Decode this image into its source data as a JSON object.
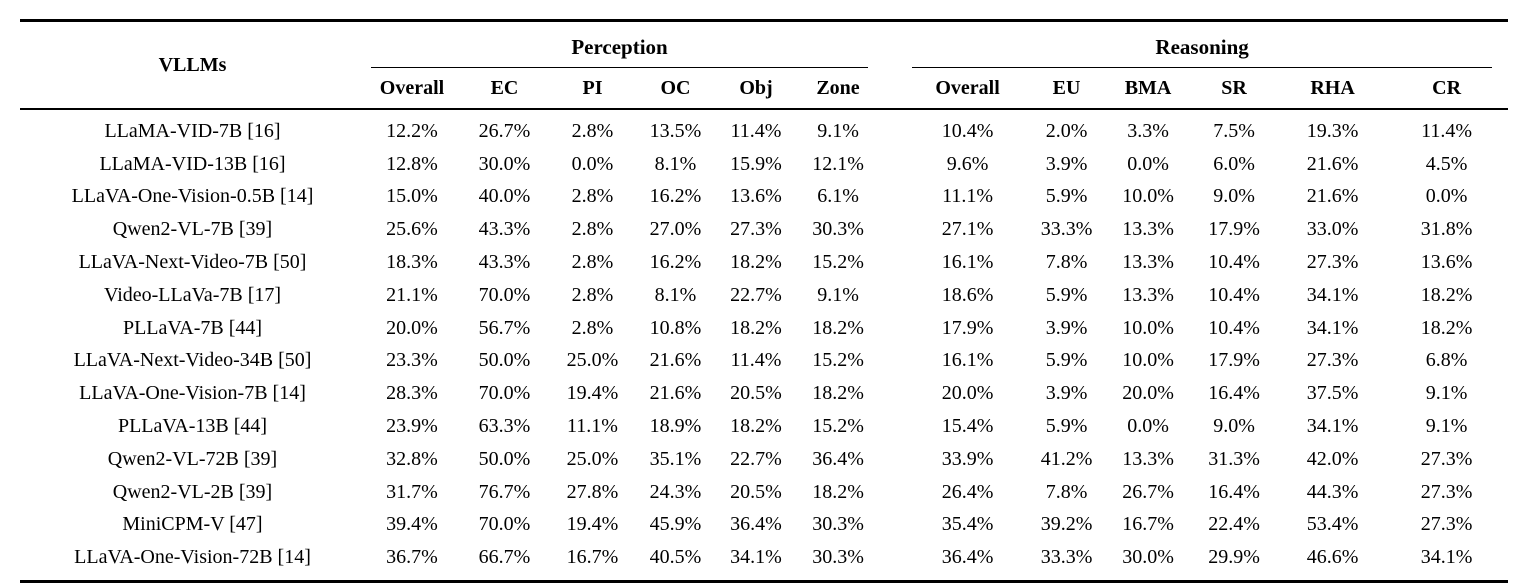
{
  "colors": {
    "text": "#000000",
    "background": "#ffffff",
    "rule": "#000000"
  },
  "table": {
    "model_header": "VLLMs",
    "groups": [
      {
        "label": "Perception",
        "columns": [
          "Overall",
          "EC",
          "PI",
          "OC",
          "Obj",
          "Zone"
        ]
      },
      {
        "label": "Reasoning",
        "columns": [
          "Overall",
          "EU",
          "BMA",
          "SR",
          "RHA",
          "CR"
        ]
      }
    ],
    "rows": [
      {
        "model": "LLaMA-VID-7B [16]",
        "values": [
          "12.2%",
          "26.7%",
          "2.8%",
          "13.5%",
          "11.4%",
          "9.1%",
          "10.4%",
          "2.0%",
          "3.3%",
          "7.5%",
          "19.3%",
          "11.4%"
        ]
      },
      {
        "model": "LLaMA-VID-13B [16]",
        "values": [
          "12.8%",
          "30.0%",
          "0.0%",
          "8.1%",
          "15.9%",
          "12.1%",
          "9.6%",
          "3.9%",
          "0.0%",
          "6.0%",
          "21.6%",
          "4.5%"
        ]
      },
      {
        "model": "LLaVA-One-Vision-0.5B [14]",
        "values": [
          "15.0%",
          "40.0%",
          "2.8%",
          "16.2%",
          "13.6%",
          "6.1%",
          "11.1%",
          "5.9%",
          "10.0%",
          "9.0%",
          "21.6%",
          "0.0%"
        ]
      },
      {
        "model": "Qwen2-VL-7B [39]",
        "values": [
          "25.6%",
          "43.3%",
          "2.8%",
          "27.0%",
          "27.3%",
          "30.3%",
          "27.1%",
          "33.3%",
          "13.3%",
          "17.9%",
          "33.0%",
          "31.8%"
        ]
      },
      {
        "model": "LLaVA-Next-Video-7B [50]",
        "values": [
          "18.3%",
          "43.3%",
          "2.8%",
          "16.2%",
          "18.2%",
          "15.2%",
          "16.1%",
          "7.8%",
          "13.3%",
          "10.4%",
          "27.3%",
          "13.6%"
        ]
      },
      {
        "model": "Video-LLaVa-7B [17]",
        "values": [
          "21.1%",
          "70.0%",
          "2.8%",
          "8.1%",
          "22.7%",
          "9.1%",
          "18.6%",
          "5.9%",
          "13.3%",
          "10.4%",
          "34.1%",
          "18.2%"
        ]
      },
      {
        "model": "PLLaVA-7B [44]",
        "values": [
          "20.0%",
          "56.7%",
          "2.8%",
          "10.8%",
          "18.2%",
          "18.2%",
          "17.9%",
          "3.9%",
          "10.0%",
          "10.4%",
          "34.1%",
          "18.2%"
        ]
      },
      {
        "model": "LLaVA-Next-Video-34B [50]",
        "values": [
          "23.3%",
          "50.0%",
          "25.0%",
          "21.6%",
          "11.4%",
          "15.2%",
          "16.1%",
          "5.9%",
          "10.0%",
          "17.9%",
          "27.3%",
          "6.8%"
        ]
      },
      {
        "model": "LLaVA-One-Vision-7B [14]",
        "values": [
          "28.3%",
          "70.0%",
          "19.4%",
          "21.6%",
          "20.5%",
          "18.2%",
          "20.0%",
          "3.9%",
          "20.0%",
          "16.4%",
          "37.5%",
          "9.1%"
        ]
      },
      {
        "model": "PLLaVA-13B [44]",
        "values": [
          "23.9%",
          "63.3%",
          "11.1%",
          "18.9%",
          "18.2%",
          "15.2%",
          "15.4%",
          "5.9%",
          "0.0%",
          "9.0%",
          "34.1%",
          "9.1%"
        ]
      },
      {
        "model": "Qwen2-VL-72B [39]",
        "values": [
          "32.8%",
          "50.0%",
          "25.0%",
          "35.1%",
          "22.7%",
          "36.4%",
          "33.9%",
          "41.2%",
          "13.3%",
          "31.3%",
          "42.0%",
          "27.3%"
        ]
      },
      {
        "model": "Qwen2-VL-2B [39]",
        "values": [
          "31.7%",
          "76.7%",
          "27.8%",
          "24.3%",
          "20.5%",
          "18.2%",
          "26.4%",
          "7.8%",
          "26.7%",
          "16.4%",
          "44.3%",
          "27.3%"
        ]
      },
      {
        "model": "MiniCPM-V [47]",
        "values": [
          "39.4%",
          "70.0%",
          "19.4%",
          "45.9%",
          "36.4%",
          "30.3%",
          "35.4%",
          "39.2%",
          "16.7%",
          "22.4%",
          "53.4%",
          "27.3%"
        ]
      },
      {
        "model": "LLaVA-One-Vision-72B [14]",
        "values": [
          "36.7%",
          "66.7%",
          "16.7%",
          "40.5%",
          "34.1%",
          "30.3%",
          "36.4%",
          "33.3%",
          "30.0%",
          "29.9%",
          "46.6%",
          "34.1%"
        ]
      }
    ]
  }
}
